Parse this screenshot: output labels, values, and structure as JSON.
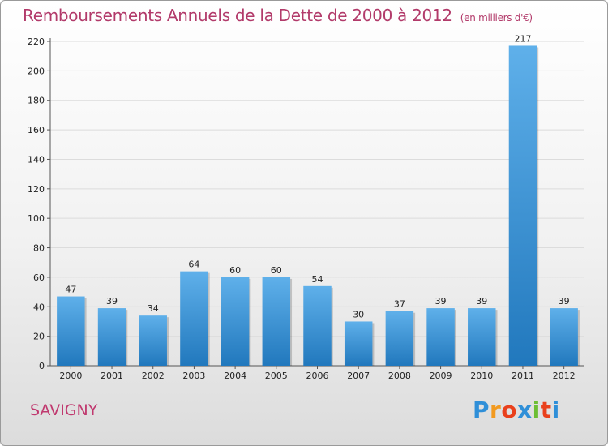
{
  "header": {
    "title": "Remboursements Annuels de la Dette de 2000 à 2012",
    "unit": "(en milliers d'€)"
  },
  "commune": "SAVIGNY",
  "logo": {
    "letters": [
      "P",
      "r",
      "o",
      "x",
      "i",
      "t",
      "i"
    ],
    "colors": [
      "#2f8fd8",
      "#f29a1f",
      "#e9401c",
      "#2f8fd8",
      "#6cbe34",
      "#e9401c",
      "#2f8fd8"
    ]
  },
  "chart_data": {
    "type": "bar",
    "categories": [
      "2000",
      "2001",
      "2002",
      "2003",
      "2004",
      "2005",
      "2006",
      "2007",
      "2008",
      "2009",
      "2010",
      "2011",
      "2012"
    ],
    "values": [
      47,
      39,
      34,
      64,
      60,
      60,
      54,
      30,
      37,
      39,
      39,
      217,
      39
    ],
    "data_labels": [
      "47",
      "39",
      "34",
      "64",
      "60",
      "60",
      "54",
      "30",
      "37",
      "39",
      "39",
      "217",
      "39"
    ],
    "ylim": [
      0,
      220
    ],
    "yticks": [
      0,
      20,
      40,
      60,
      80,
      100,
      120,
      140,
      160,
      180,
      200,
      220
    ],
    "grid": true,
    "bar_color": "#3a93d8"
  }
}
